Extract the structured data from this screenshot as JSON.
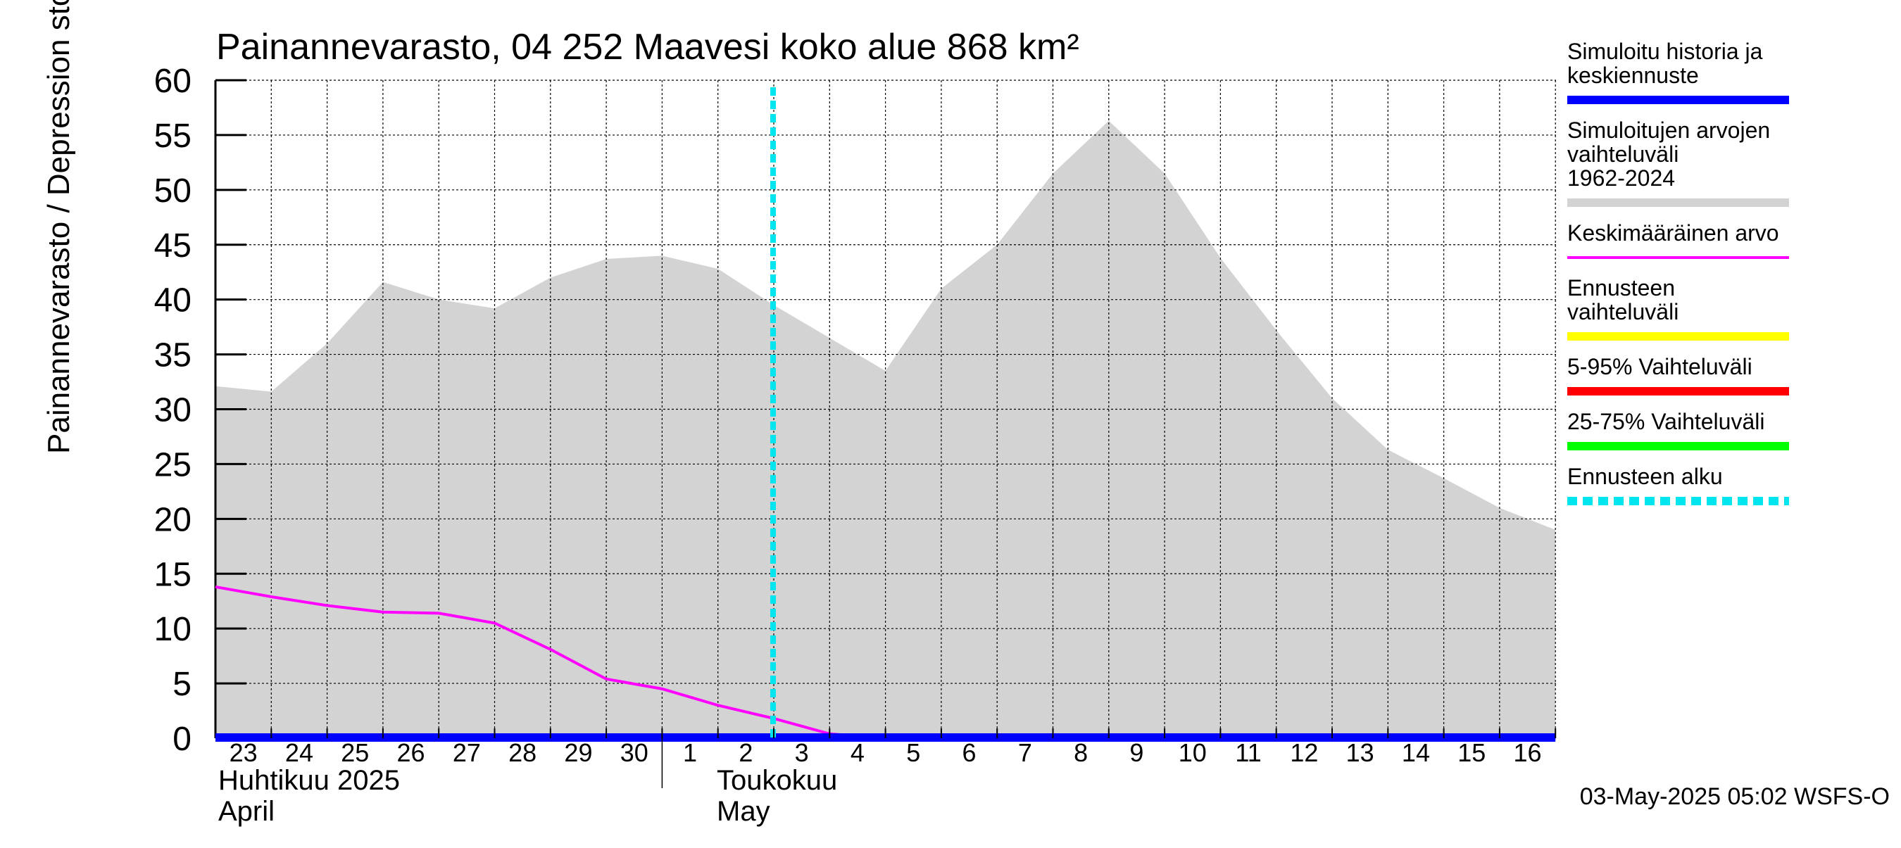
{
  "chart_data": {
    "type": "area",
    "title": "Painannevarasto, 04 252 Maavesi koko alue 868 km²",
    "ylabel": "Painannevarasto / Depression storage    mm",
    "ylim": [
      0,
      60
    ],
    "yticks": [
      0,
      5,
      10,
      15,
      20,
      25,
      30,
      35,
      40,
      45,
      50,
      55,
      60
    ],
    "grid": true,
    "legend_position": "right",
    "x": [
      "04-23",
      "04-24",
      "04-25",
      "04-26",
      "04-27",
      "04-28",
      "04-29",
      "04-30",
      "05-01",
      "05-02",
      "05-03",
      "05-04",
      "05-05",
      "05-06",
      "05-07",
      "05-08",
      "05-09",
      "05-10",
      "05-11",
      "05-12",
      "05-13",
      "05-14",
      "05-15",
      "05-16",
      "05-17"
    ],
    "x_tick_labels": [
      "23",
      "24",
      "25",
      "26",
      "27",
      "28",
      "29",
      "30",
      "1",
      "2",
      "3",
      "4",
      "5",
      "6",
      "7",
      "8",
      "9",
      "10",
      "11",
      "12",
      "13",
      "14",
      "15",
      "16"
    ],
    "month_labels": [
      {
        "line1": "Huhtikuu  2025",
        "line2": "April"
      },
      {
        "line1": "Toukokuu",
        "line2": "May"
      }
    ],
    "forecast_start": "05-03 05:00",
    "series": [
      {
        "name": "Simuloitujen arvojen vaihteluväli 1962-2024",
        "kind": "range",
        "color": "#d3d3d3",
        "lower": [
          0,
          0,
          0,
          0,
          0,
          0,
          0,
          0,
          0,
          0,
          0,
          0,
          0,
          0,
          0,
          0,
          0,
          0,
          0,
          0,
          0,
          0,
          0,
          0,
          0
        ],
        "upper": [
          32.1,
          31.6,
          36.0,
          41.6,
          40.0,
          39.2,
          42.0,
          43.7,
          44.0,
          42.8,
          39.5,
          36.5,
          33.5,
          41.0,
          45.0,
          51.5,
          56.3,
          51.5,
          43.8,
          37.2,
          31.0,
          26.3,
          23.7,
          21.0,
          19.0
        ]
      },
      {
        "name": "Keskimääräinen arvo",
        "kind": "line",
        "color": "#ff00ff",
        "values": [
          13.8,
          12.9,
          12.1,
          11.5,
          11.4,
          10.5,
          8.1,
          5.4,
          4.5,
          3.0,
          1.8,
          0.4,
          0.0,
          0.0,
          0.0,
          0.0,
          0.0,
          0.0,
          0.0,
          0.0,
          0.0,
          0.0,
          0.0,
          0.0,
          0.0
        ]
      },
      {
        "name": "Simuloitu historia ja keskiennuste",
        "kind": "line",
        "color": "#0000ff",
        "values": [
          0,
          0,
          0,
          0,
          0,
          0,
          0,
          0,
          0,
          0,
          0,
          0,
          0,
          0,
          0,
          0,
          0,
          0,
          0,
          0,
          0,
          0,
          0,
          0,
          0
        ]
      }
    ]
  },
  "legend": [
    {
      "label": "Simuloitu historia ja keskiennuste",
      "color": "#0000ff",
      "style": "solid-thick"
    },
    {
      "label": "Simuloitujen arvojen vaihteluväli 1962-2024",
      "color": "#d3d3d3",
      "style": "solid-thick"
    },
    {
      "label": "Keskimääräinen arvo",
      "color": "#ff00ff",
      "style": "solid-thin"
    },
    {
      "label": "Ennusteen vaihteluväli",
      "color": "#ffff00",
      "style": "solid-thick"
    },
    {
      "label": "5-95% Vaihteluväli",
      "color": "#ff0000",
      "style": "solid-thick"
    },
    {
      "label": "25-75% Vaihteluväli",
      "color": "#00ff00",
      "style": "solid-thick"
    },
    {
      "label": "Ennusteen alku",
      "color": "#00e5ee",
      "style": "dashed-thick"
    }
  ],
  "footer": "03-May-2025 05:02 WSFS-O"
}
